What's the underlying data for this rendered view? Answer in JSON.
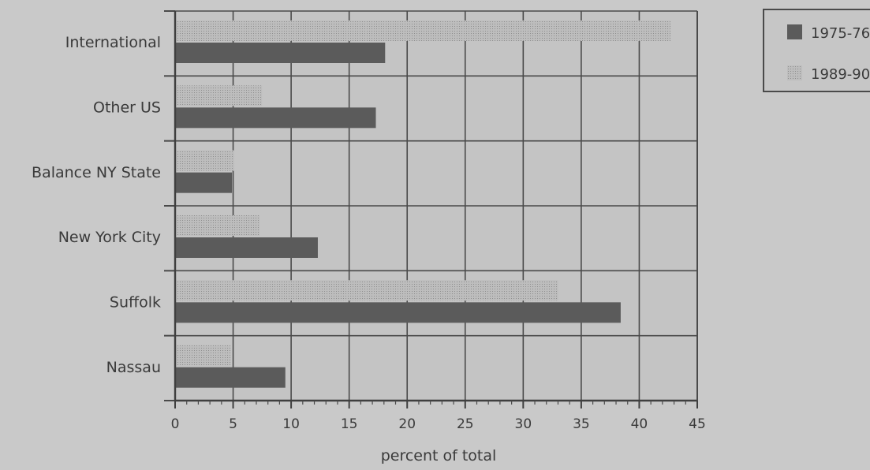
{
  "chart_data": {
    "type": "bar",
    "orientation": "horizontal",
    "categories": [
      "Nassau",
      "Suffolk",
      "New York City",
      "Balance NY State",
      "Other US",
      "International"
    ],
    "series": [
      {
        "name": "1975-76",
        "values": [
          9.5,
          38.4,
          12.3,
          4.9,
          17.3,
          18.1
        ]
      },
      {
        "name": "1989-90",
        "values": [
          4.8,
          33.0,
          7.3,
          5.1,
          7.5,
          42.7
        ]
      }
    ],
    "xlabel": "percent of total",
    "xlim": [
      0,
      45
    ],
    "xticks": [
      0,
      5,
      10,
      15,
      20,
      25,
      30,
      35,
      40,
      45
    ],
    "grid": true,
    "legend_position": "top-right"
  },
  "colors": {
    "background": "#c9c9c9",
    "plot_background": "#c4c4c4",
    "grid": "#4a4a4a",
    "series_1975": "#5b5b5b",
    "series_1989": "#b2b2b2"
  }
}
